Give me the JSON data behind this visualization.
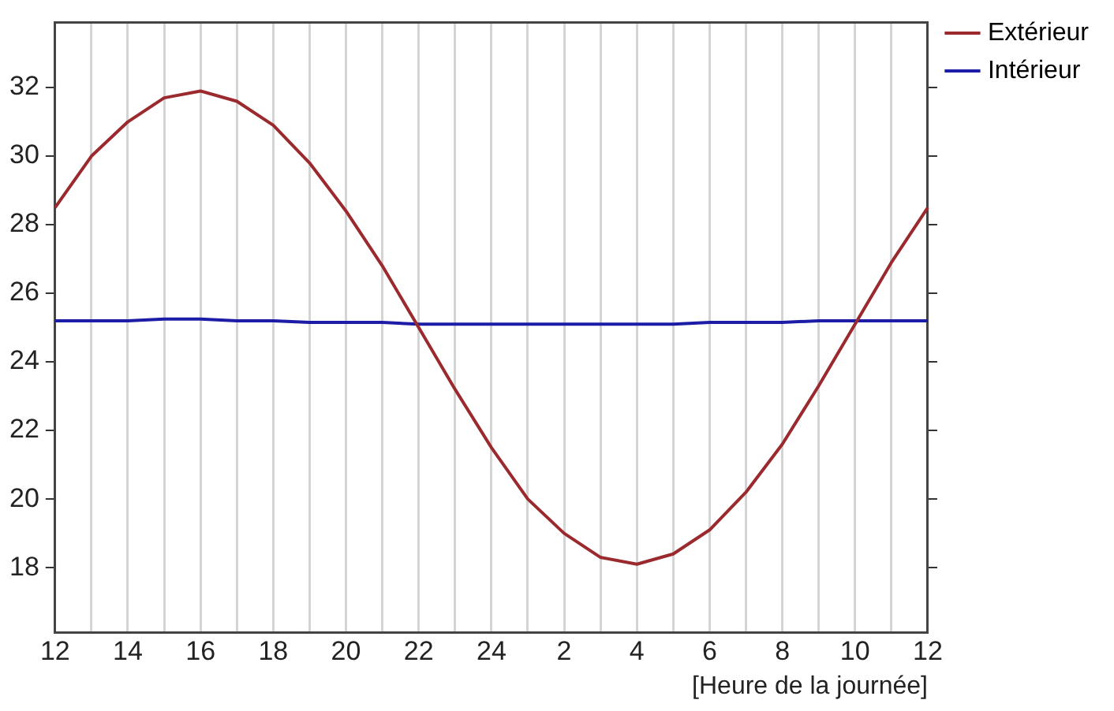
{
  "chart_data": {
    "type": "line",
    "xlabel": "[Heure de la journée]",
    "categories": [
      "12",
      null,
      "14",
      null,
      "16",
      null,
      "18",
      null,
      "20",
      null,
      "22",
      null,
      "24",
      null,
      "2",
      null,
      "4",
      null,
      "6",
      null,
      "8",
      null,
      "10",
      null,
      "12"
    ],
    "series": [
      {
        "name": "Extérieur",
        "color": "#9b2a2e",
        "values": [
          28.5,
          30.0,
          31.0,
          31.7,
          31.9,
          31.6,
          30.9,
          29.8,
          28.4,
          26.8,
          25.0,
          23.2,
          21.5,
          20.0,
          19.0,
          18.3,
          18.1,
          18.4,
          19.1,
          20.2,
          21.6,
          23.3,
          25.1,
          26.9,
          28.5
        ]
      },
      {
        "name": "Intérieur",
        "color": "#1c1ca6",
        "values": [
          25.2,
          25.2,
          25.2,
          25.25,
          25.25,
          25.2,
          25.2,
          25.15,
          25.15,
          25.15,
          25.1,
          25.1,
          25.1,
          25.1,
          25.1,
          25.1,
          25.1,
          25.1,
          25.15,
          25.15,
          25.15,
          25.2,
          25.2,
          25.2,
          25.2
        ]
      }
    ],
    "ylim": [
      16.1,
      33.9
    ],
    "yticks": [
      18,
      20,
      22,
      24,
      26,
      28,
      30,
      32
    ],
    "grid": "x",
    "legend": "top right",
    "marker": "none",
    "line_style": "solid"
  }
}
